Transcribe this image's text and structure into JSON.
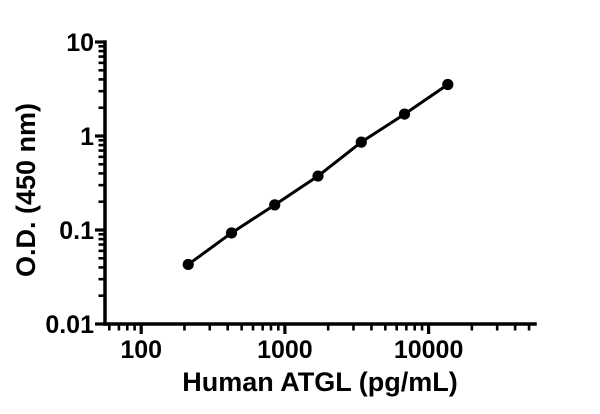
{
  "figure": {
    "background": "#ffffff",
    "foreground": "#000000"
  },
  "chart_data": {
    "type": "scatter",
    "subtype": "log-log standard curve with connecting line",
    "title": "",
    "xlabel": "Human ATGL (pg/mL)",
    "ylabel": "O.D. (450 nm)",
    "x_scale": "log",
    "y_scale": "log",
    "x": [
      212.5,
      425,
      850,
      1700,
      3400,
      6800,
      13600
    ],
    "y": [
      0.043,
      0.093,
      0.185,
      0.375,
      0.86,
      1.71,
      3.53
    ],
    "xlim": [
      56,
      55000
    ],
    "ylim": [
      0.01,
      10
    ],
    "x_major_ticks": [
      100,
      1000,
      10000
    ],
    "x_tick_labels": [
      "100",
      "1000",
      "10000"
    ],
    "y_major_ticks": [
      10,
      1,
      0.1,
      0.01
    ],
    "y_tick_labels": [
      "10",
      "1",
      "0.1",
      "0.01"
    ],
    "grid": false,
    "legend": "none",
    "line_color": "#000000",
    "marker_color": "#000000",
    "axis_color": "#000000",
    "marker": "filled-circle"
  }
}
